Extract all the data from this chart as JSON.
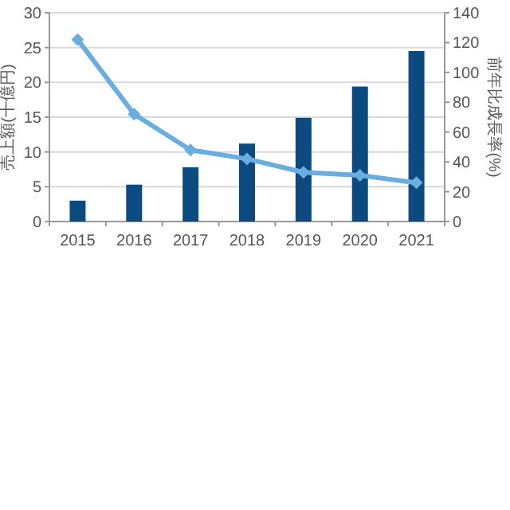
{
  "chart_data": {
    "type": "bar",
    "categories": [
      "2015",
      "2016",
      "2017",
      "2018",
      "2019",
      "2020",
      "2021"
    ],
    "ylabel": "売上額(十億円)",
    "y2label": "前年比成長率(%)",
    "series": [
      {
        "color": "#0d4a7f",
        "values": [
          3.0,
          5.3,
          7.8,
          11.2,
          14.9,
          19.4,
          24.5
        ]
      },
      {
        "type": "line",
        "axis": "y2",
        "color": "#6aaee0",
        "marker": "diamond",
        "values": [
          122,
          72,
          48,
          42,
          33,
          31,
          26
        ]
      }
    ],
    "ylim": [
      0,
      30
    ],
    "yticks": [
      0,
      5,
      10,
      15,
      20,
      25,
      30
    ],
    "y2lim": [
      0,
      140
    ],
    "y2ticks": [
      0,
      20,
      40,
      60,
      80,
      100,
      120,
      140
    ],
    "grid": "y"
  }
}
